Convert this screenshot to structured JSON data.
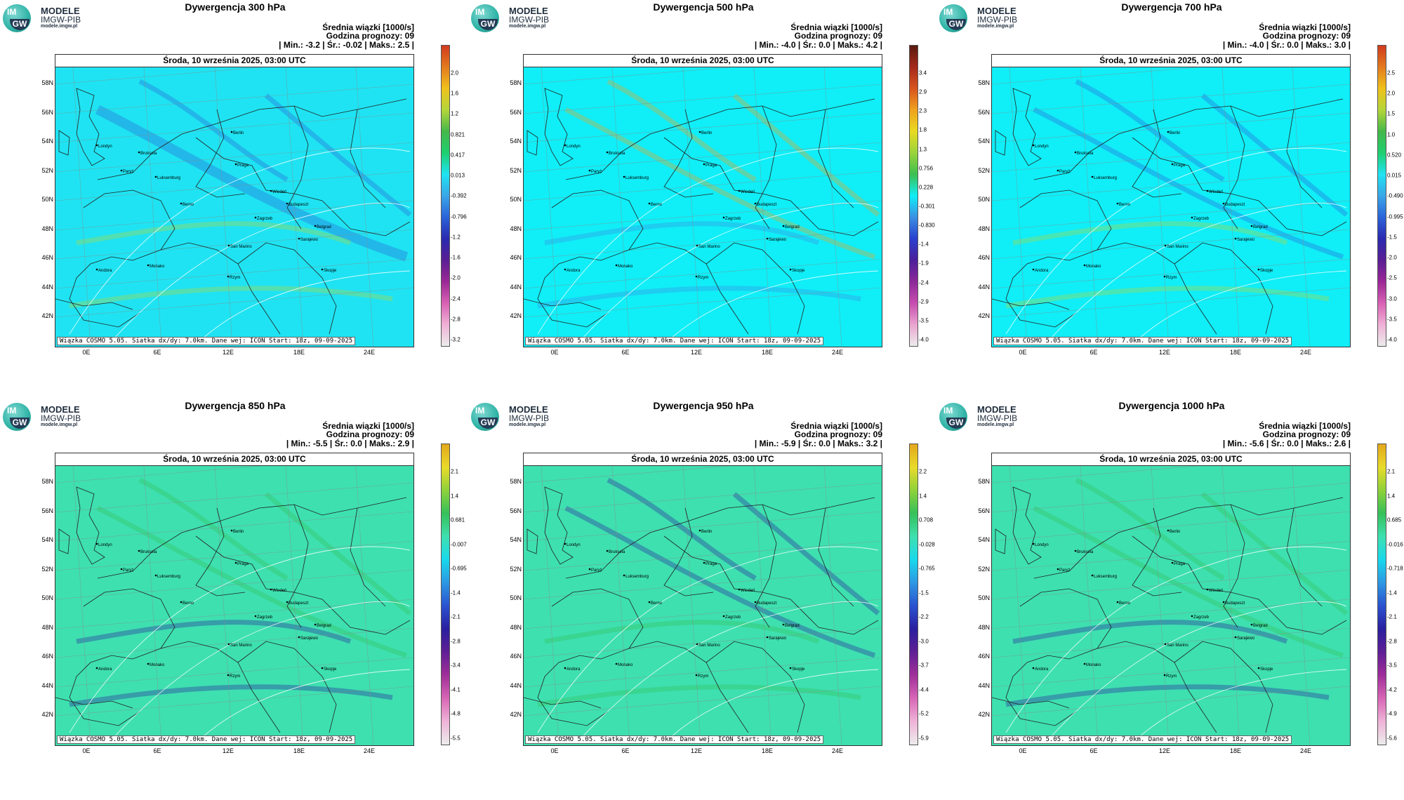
{
  "logo": {
    "im": "IM",
    "gw": "GW",
    "name": "MODELE",
    "org": "IMGW-PIB",
    "url": "modele.imgw.pl"
  },
  "common": {
    "valid_time": "Środa, 10 września 2025, 03:00 UTC",
    "subtitle": "Średnia wiązki [1000/s]",
    "forecast_hour": "Godzina prognozy: 09",
    "footer": "Wiązka COSMO 5.05. Siatka dx/dy: 7.0km. Dane wej: ICON Start: 18z, 09-09-2025",
    "lat_labels": [
      "58N",
      "56N",
      "54N",
      "52N",
      "50N",
      "48N",
      "46N",
      "44N",
      "42N"
    ],
    "lon_labels": [
      "0E",
      "6E",
      "12E",
      "18E",
      "24E"
    ],
    "cities": [
      "Londyn",
      "Bruksela",
      "Paryż",
      "Luksemburg",
      "Praga",
      "Berlin",
      "Wiedeń",
      "Budapeszt",
      "Berno",
      "Zagrzeb",
      "Belgrad",
      "San Marino",
      "Sarajewo",
      "Andora",
      "Monako",
      "Rzym",
      "Skopje"
    ]
  },
  "panels": [
    {
      "title": "Dywergencja 300 hPa",
      "stats": "| Min.: -3.2 | Śr.: -0.02 | Maks.: 2.5 |",
      "colorbar": [
        "2.0",
        "1.6",
        "1.2",
        "0.821",
        "0.417",
        "0.013",
        "-0.392",
        "-0.796",
        "-1.2",
        "-1.6",
        "-2.0",
        "-2.4",
        "-2.8",
        "-3.2"
      ],
      "background": "#1fe3f2",
      "palette": "a"
    },
    {
      "title": "Dywergencja 500 hPa",
      "stats": "| Min.: -4.0 | Śr.: 0.0 | Maks.: 4.2 |",
      "colorbar": [
        "3.4",
        "2.9",
        "2.3",
        "1.8",
        "1.3",
        "0.756",
        "0.228",
        "-0.301",
        "-0.830",
        "-1.4",
        "-1.9",
        "-2.4",
        "-2.9",
        "-3.5",
        "-4.0"
      ],
      "background": "#10eef7",
      "palette": "b"
    },
    {
      "title": "Dywergencja 700 hPa",
      "stats": "| Min.: -4.0 | Śr.: 0.0 | Maks.: 3.0 |",
      "colorbar": [
        "2.5",
        "2.0",
        "1.5",
        "1.0",
        "0.520",
        "0.015",
        "-0.490",
        "-0.995",
        "-1.5",
        "-2.0",
        "-2.5",
        "-3.0",
        "-3.5",
        "-4.0"
      ],
      "background": "#10eef7",
      "palette": "a"
    },
    {
      "title": "Dywergencja 850 hPa",
      "stats": "| Min.: -5.5 | Śr.: 0.0 | Maks.: 2.9 |",
      "colorbar": [
        "2.1",
        "1.4",
        "0.681",
        "-0.007",
        "-0.695",
        "-1.4",
        "-2.1",
        "-2.8",
        "-3.4",
        "-4.1",
        "-4.8",
        "-5.5"
      ],
      "background": "#3ee0b0",
      "palette": "c"
    },
    {
      "title": "Dywergencja 950 hPa",
      "stats": "| Min.: -5.9 | Śr.: 0.0 | Maks.: 3.2 |",
      "colorbar": [
        "2.2",
        "1.4",
        "0.708",
        "-0.028",
        "-0.765",
        "-1.5",
        "-2.2",
        "-3.0",
        "-3.7",
        "-4.4",
        "-5.2",
        "-5.9"
      ],
      "background": "#3ee0b0",
      "palette": "c"
    },
    {
      "title": "Dywergencja 1000 hPa",
      "stats": "| Min.: -5.6 | Śr.: 0.0 | Maks.: 2.6 |",
      "colorbar": [
        "2.1",
        "1.4",
        "0.685",
        "-0.016",
        "-0.718",
        "-1.4",
        "-2.1",
        "-2.8",
        "-3.5",
        "-4.2",
        "-4.9",
        "-5.6"
      ],
      "background": "#3ee0b0",
      "palette": "c"
    }
  ]
}
